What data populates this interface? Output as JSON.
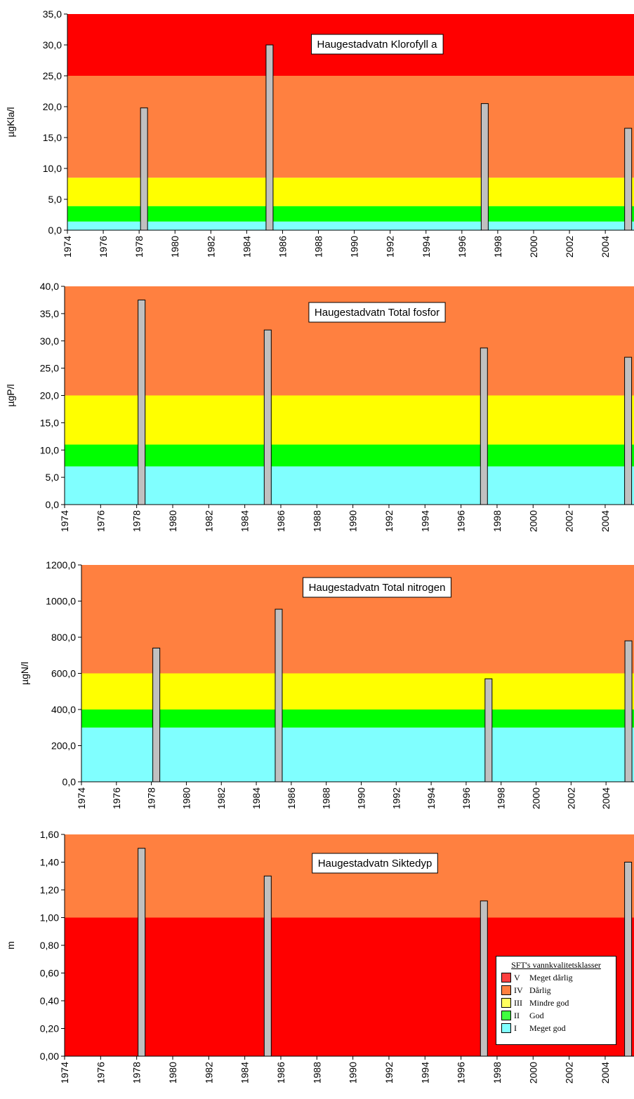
{
  "colors": {
    "class_V": "#FF0000",
    "class_IV": "#FF8040",
    "class_III": "#FFFF00",
    "class_II": "#00FF00",
    "class_I": "#80FFFF",
    "bar": "#C0C0C0"
  },
  "legend": {
    "title": "SFT's vannkvalitetsklasser",
    "items": [
      {
        "code": "V",
        "label": "Meget dårlig",
        "color": "#FF4040"
      },
      {
        "code": "IV",
        "label": "Dårlig",
        "color": "#FF8040"
      },
      {
        "code": "III",
        "label": "Mindre god",
        "color": "#FFFF60"
      },
      {
        "code": "II",
        "label": "God",
        "color": "#40FF40"
      },
      {
        "code": "I",
        "label": "Meget god",
        "color": "#80FFFF"
      }
    ]
  },
  "chart_data": [
    {
      "type": "bar",
      "title": "Haugestadvatn Klorofyll a",
      "ylabel": "µgKla/l",
      "ylim": [
        0,
        35
      ],
      "yticks": [
        "0,0",
        "5,0",
        "10,0",
        "15,0",
        "20,0",
        "25,0",
        "30,0",
        "35,0"
      ],
      "xlim": [
        1974,
        2005.6
      ],
      "xticks": [
        "1974",
        "1976",
        "1978",
        "1980",
        "1982",
        "1984",
        "1986",
        "1988",
        "1990",
        "1992",
        "1994",
        "1996",
        "1998",
        "2000",
        "2002",
        "2004"
      ],
      "x": [
        1978,
        1985,
        1997,
        2005
      ],
      "values": [
        19.8,
        30.0,
        20.5,
        16.5
      ],
      "bands": [
        {
          "class": "I",
          "from": 0,
          "to": 1.4
        },
        {
          "class": "II",
          "from": 1.4,
          "to": 3.9
        },
        {
          "class": "III",
          "from": 3.9,
          "to": 8.5
        },
        {
          "class": "IV",
          "from": 8.5,
          "to": 25
        },
        {
          "class": "V",
          "from": 25,
          "to": 35
        }
      ]
    },
    {
      "type": "bar",
      "title": "Haugestadvatn Total fosfor",
      "ylabel": "µgP/l",
      "ylim": [
        0,
        40
      ],
      "yticks": [
        "0,0",
        "5,0",
        "10,0",
        "15,0",
        "20,0",
        "25,0",
        "30,0",
        "35,0",
        "40,0"
      ],
      "xlim": [
        1974,
        2005.6
      ],
      "xticks": [
        "1974",
        "1976",
        "1978",
        "1980",
        "1982",
        "1984",
        "1986",
        "1988",
        "1990",
        "1992",
        "1994",
        "1996",
        "1998",
        "2000",
        "2002",
        "2004"
      ],
      "x": [
        1978,
        1985,
        1997,
        2005
      ],
      "values": [
        37.5,
        32.0,
        28.7,
        27.0
      ],
      "bands": [
        {
          "class": "I",
          "from": 0,
          "to": 7
        },
        {
          "class": "II",
          "from": 7,
          "to": 11
        },
        {
          "class": "III",
          "from": 11,
          "to": 20
        },
        {
          "class": "IV",
          "from": 20,
          "to": 40
        }
      ]
    },
    {
      "type": "bar",
      "title": "Haugestadvatn Total nitrogen",
      "ylabel": "µgN/l",
      "ylim": [
        0,
        1200
      ],
      "yticks": [
        "0,0",
        "200,0",
        "400,0",
        "600,0",
        "800,0",
        "1000,0",
        "1200,0"
      ],
      "xlim": [
        1974,
        2005.6
      ],
      "xticks": [
        "1974",
        "1976",
        "1978",
        "1980",
        "1982",
        "1984",
        "1986",
        "1988",
        "1990",
        "1992",
        "1994",
        "1996",
        "1998",
        "2000",
        "2002",
        "2004"
      ],
      "x": [
        1978,
        1985,
        1997,
        2005
      ],
      "values": [
        740,
        955,
        570,
        780
      ],
      "bands": [
        {
          "class": "I",
          "from": 0,
          "to": 300
        },
        {
          "class": "II",
          "from": 300,
          "to": 400
        },
        {
          "class": "III",
          "from": 400,
          "to": 600
        },
        {
          "class": "IV",
          "from": 600,
          "to": 1200
        }
      ]
    },
    {
      "type": "bar",
      "title": "Haugestadvatn Siktedyp",
      "ylabel": "m",
      "ylim": [
        0,
        1.6
      ],
      "yticks": [
        "0,00",
        "0,20",
        "0,40",
        "0,60",
        "0,80",
        "1,00",
        "1,20",
        "1,40",
        "1,60"
      ],
      "xlim": [
        1974,
        2005.6
      ],
      "xticks": [
        "1974",
        "1976",
        "1978",
        "1980",
        "1982",
        "1984",
        "1986",
        "1988",
        "1990",
        "1992",
        "1994",
        "1996",
        "1998",
        "2000",
        "2002",
        "2004"
      ],
      "x": [
        1978,
        1985,
        1997,
        2005
      ],
      "values": [
        1.5,
        1.3,
        1.12,
        1.4
      ],
      "bands": [
        {
          "class": "V",
          "from": 0,
          "to": 1.0
        },
        {
          "class": "IV",
          "from": 1.0,
          "to": 1.6
        }
      ]
    }
  ]
}
